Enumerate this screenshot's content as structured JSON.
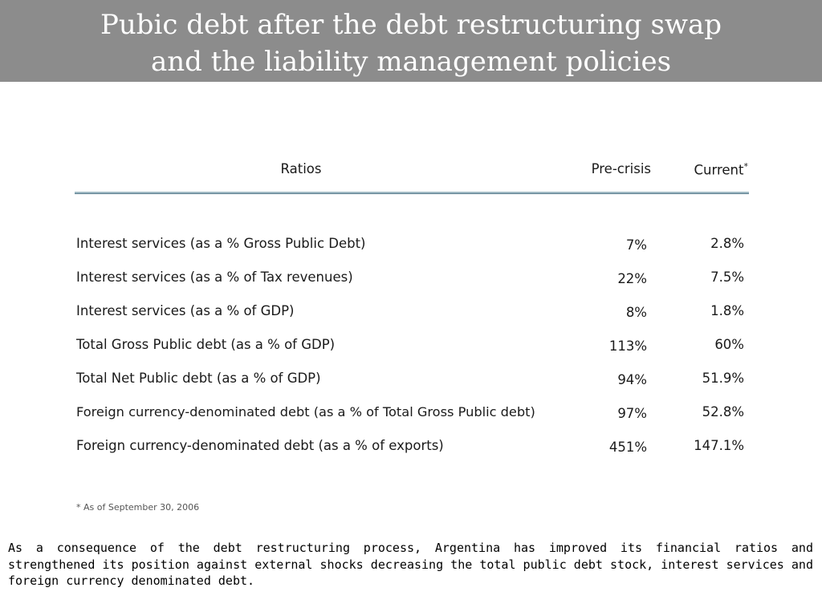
{
  "title": {
    "line1": "Pubic debt after the debt restructuring swap",
    "line2": "and the liability management policies"
  },
  "table": {
    "headers": {
      "ratios": "Ratios",
      "pre_crisis": "Pre-crisis",
      "current": "Current",
      "current_marker": "*"
    },
    "rows": [
      {
        "label": "Interest services (as a % Gross Public Debt)",
        "pre_crisis": "7%",
        "current": "2.8%"
      },
      {
        "label": "Interest services (as a % of Tax revenues)",
        "pre_crisis": "22%",
        "current": "7.5%"
      },
      {
        "label": "Interest services (as a % of GDP)",
        "pre_crisis": "8%",
        "current": "1.8%"
      },
      {
        "label": "Total Gross Public debt (as a % of GDP)",
        "pre_crisis": "113%",
        "current": "60%"
      },
      {
        "label": "Total Net Public debt (as a % of GDP)",
        "pre_crisis": "94%",
        "current": "51.9%"
      },
      {
        "label": "Foreign currency-denominated debt (as a % of Total Gross Public debt)",
        "pre_crisis": "97%",
        "current": "52.8%"
      },
      {
        "label": "Foreign currency-denominated debt (as a % of exports)",
        "pre_crisis": "451%",
        "current": "147.1%"
      }
    ]
  },
  "footnote": "* As of September 30, 2006",
  "conclusion": "As a consequence of the debt restructuring process, Argentina has improved its financial ratios and strengthened its position against external shocks decreasing the total public debt stock, interest services and foreign currency denominated debt.",
  "colors": {
    "header_band": "#8c8c8c",
    "rule": "#9fb8c2"
  }
}
